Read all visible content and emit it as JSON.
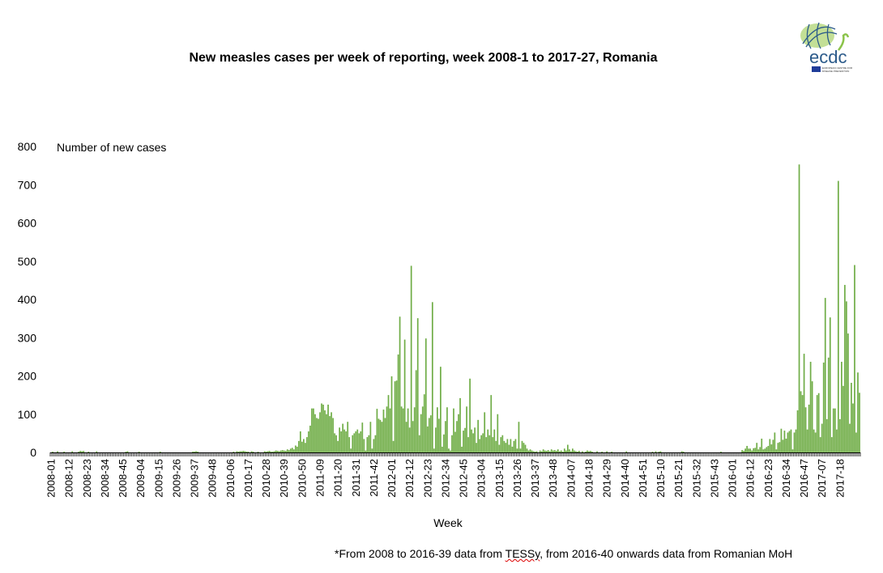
{
  "title": "New measles cases per week of reporting, week 2008-1 to 2017-27, Romania",
  "footnote": {
    "before": "*From 2008 to 2016-39 data from ",
    "underlined": "TESSy",
    "after": ",  from 2016-40 onwards data from Romanian MoH"
  },
  "logo": {
    "text": "ecdc",
    "subtext": "EUROPEAN CENTRE FOR DISEASE PREVENTION AND CONTROL"
  },
  "chart_data": {
    "type": "bar",
    "title": "New measles cases per week of reporting, week 2008-1 to 2017-27, Romania",
    "xlabel": "Week",
    "ylabel": "Number of new cases",
    "ylim": [
      0,
      800
    ],
    "yticks": [
      0,
      100,
      200,
      300,
      400,
      500,
      600,
      700,
      800
    ],
    "x_tick_labels": [
      "2008-01",
      "2008-12",
      "2008-23",
      "2008-34",
      "2008-45",
      "2009-04",
      "2009-15",
      "2009-26",
      "2009-37",
      "2009-48",
      "2010-06",
      "2010-17",
      "2010-28",
      "2010-39",
      "2010-50",
      "2011-09",
      "2011-20",
      "2011-31",
      "2011-42",
      "2012-01",
      "2012-12",
      "2012-23",
      "2012-34",
      "2012-45",
      "2013-04",
      "2013-15",
      "2013-26",
      "2013-37",
      "2013-48",
      "2014-07",
      "2014-18",
      "2014-29",
      "2014-40",
      "2014-51",
      "2015-10",
      "2015-21",
      "2015-32",
      "2015-43",
      "2016-01",
      "2016-12",
      "2016-23",
      "2016-34",
      "2016-47",
      "2017-07",
      "2017-18"
    ],
    "x_tick_every": 11,
    "grid": false,
    "bar_color": "#70AD47",
    "values": [
      0,
      2,
      0,
      0,
      3,
      0,
      0,
      0,
      2,
      0,
      0,
      0,
      0,
      3,
      0,
      0,
      0,
      2,
      4,
      3,
      4,
      0,
      0,
      2,
      0,
      0,
      0,
      0,
      3,
      0,
      0,
      0,
      0,
      0,
      0,
      0,
      0,
      0,
      0,
      0,
      0,
      0,
      0,
      0,
      0,
      0,
      2,
      3,
      0,
      0,
      0,
      0,
      0,
      0,
      2,
      0,
      0,
      0,
      0,
      0,
      0,
      0,
      0,
      0,
      0,
      0,
      0,
      2,
      0,
      0,
      0,
      0,
      0,
      0,
      0,
      0,
      0,
      0,
      0,
      0,
      0,
      0,
      0,
      0,
      0,
      0,
      0,
      2,
      2,
      3,
      2,
      0,
      0,
      0,
      0,
      0,
      0,
      0,
      0,
      0,
      0,
      0,
      0,
      0,
      0,
      0,
      0,
      0,
      0,
      0,
      0,
      0,
      2,
      0,
      3,
      2,
      3,
      3,
      4,
      3,
      2,
      2,
      0,
      3,
      2,
      0,
      0,
      2,
      0,
      0,
      0,
      3,
      2,
      3,
      4,
      2,
      2,
      3,
      5,
      4,
      3,
      5,
      6,
      5,
      4,
      8,
      6,
      10,
      12,
      8,
      18,
      15,
      30,
      55,
      28,
      35,
      25,
      40,
      55,
      70,
      115,
      115,
      100,
      90,
      88,
      105,
      128,
      125,
      110,
      100,
      125,
      95,
      105,
      90,
      50,
      45,
      30,
      65,
      55,
      75,
      60,
      55,
      80,
      40,
      10,
      45,
      50,
      55,
      60,
      50,
      55,
      78,
      35,
      5,
      40,
      45,
      80,
      10,
      35,
      45,
      114,
      88,
      85,
      80,
      112,
      90,
      120,
      150,
      115,
      199,
      30,
      186,
      188,
      256,
      355,
      120,
      115,
      295,
      80,
      115,
      65,
      488,
      82,
      118,
      215,
      351,
      45,
      100,
      120,
      152,
      298,
      68,
      90,
      97,
      393,
      10,
      65,
      118,
      88,
      224,
      15,
      47,
      82,
      118,
      10,
      5,
      45,
      115,
      54,
      82,
      100,
      142,
      15,
      57,
      64,
      120,
      40,
      193,
      60,
      50,
      65,
      25,
      85,
      35,
      45,
      50,
      105,
      40,
      60,
      45,
      150,
      40,
      60,
      30,
      100,
      20,
      40,
      45,
      30,
      25,
      35,
      20,
      35,
      15,
      30,
      35,
      10,
      80,
      10,
      30,
      25,
      20,
      10,
      5,
      8,
      5,
      3,
      2,
      3,
      0,
      5,
      3,
      8,
      5,
      4,
      6,
      3,
      8,
      5,
      6,
      4,
      8,
      3,
      5,
      2,
      10,
      5,
      20,
      8,
      3,
      10,
      5,
      3,
      2,
      4,
      0,
      3,
      0,
      2,
      5,
      3,
      4,
      2,
      0,
      0,
      3,
      0,
      0,
      2,
      0,
      0,
      3,
      0,
      0,
      2,
      0,
      0,
      0,
      0,
      0,
      0,
      0,
      0,
      3,
      0,
      0,
      0,
      0,
      0,
      0,
      0,
      0,
      0,
      0,
      0,
      0,
      0,
      0,
      0,
      2,
      0,
      3,
      0,
      2,
      3,
      0,
      0,
      0,
      0,
      0,
      0,
      0,
      0,
      0,
      0,
      0,
      0,
      3,
      2,
      0,
      0,
      0,
      0,
      0,
      0,
      0,
      0,
      0,
      0,
      0,
      0,
      0,
      0,
      0,
      0,
      0,
      0,
      0,
      0,
      0,
      0,
      2,
      0,
      0,
      0,
      0,
      0,
      0,
      0,
      0,
      0,
      0,
      0,
      0,
      6,
      4,
      10,
      17,
      10,
      10,
      5,
      11,
      12,
      25,
      8,
      14,
      36,
      8,
      10,
      14,
      17,
      35,
      21,
      33,
      52,
      8,
      25,
      27,
      62,
      33,
      57,
      36,
      52,
      56,
      60,
      8,
      52,
      60,
      110,
      753,
      160,
      150,
      258,
      118,
      60,
      125,
      237,
      186,
      60,
      52,
      150,
      155,
      40,
      75,
      235,
      404,
      87,
      248,
      353,
      40,
      115,
      115,
      60,
      710,
      87,
      237,
      174,
      438,
      395,
      311,
      75,
      182,
      128,
      490,
      52,
      209,
      156
    ]
  }
}
